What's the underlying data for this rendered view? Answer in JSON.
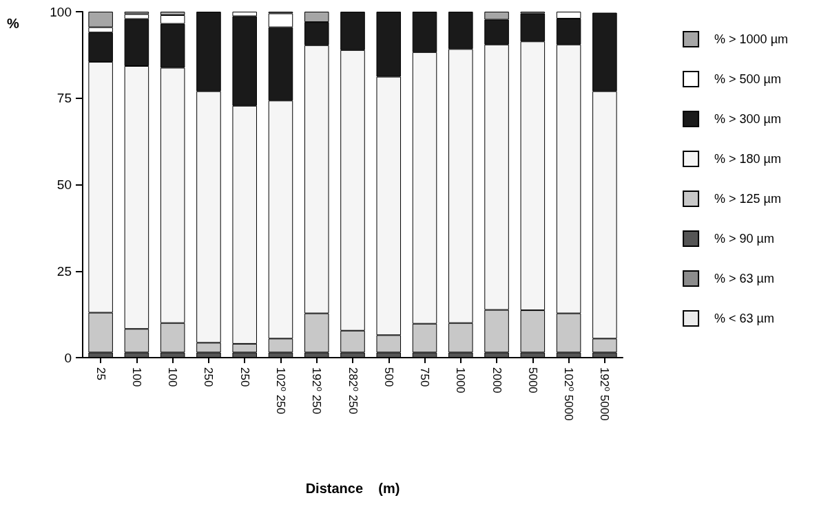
{
  "chart_data": {
    "type": "bar",
    "stacked": true,
    "xlabel": "Distance    (m)",
    "ylabel": "%",
    "categories": [
      "25",
      "100",
      "100",
      "250",
      "250",
      "102⁰ 250",
      "192⁰ 250",
      "282⁰ 250",
      "500",
      "750",
      "1000",
      "2000",
      "5000",
      "102⁰ 5000",
      "192⁰ 5000"
    ],
    "ylim": [
      0,
      100
    ],
    "yticks": [
      0,
      25,
      50,
      75,
      100
    ],
    "grid": false,
    "legend": "right",
    "series": [
      {
        "name": "% < 63 µm",
        "color": "#ececec",
        "values": [
          null,
          null,
          null,
          null,
          null,
          null,
          null,
          null,
          null,
          null,
          null,
          null,
          null,
          null,
          null
        ]
      },
      {
        "name": "% > 63 µm",
        "color": "#8c8c8c",
        "values": [
          null,
          null,
          null,
          null,
          null,
          null,
          null,
          null,
          null,
          null,
          null,
          null,
          null,
          null,
          null
        ]
      },
      {
        "name": "% > 90 µm",
        "color": "#555555",
        "values": [
          1.5,
          1.5,
          1.5,
          1.5,
          1.5,
          1.5,
          1.5,
          1.5,
          1.5,
          1.5,
          1.5,
          1.5,
          1.5,
          1.5,
          1.5
        ]
      },
      {
        "name": "% > 125 µm",
        "color": "#c8c8c8",
        "values": [
          11.5,
          6.8,
          8.5,
          2.8,
          2.5,
          4,
          11.3,
          6.3,
          5,
          8.3,
          8.5,
          12.3,
          12.2,
          11.3,
          4
        ]
      },
      {
        "name": "% > 180 µm",
        "color": "#f5f5f5",
        "values": [
          72.5,
          76,
          73.8,
          72.7,
          68.8,
          68.8,
          77.5,
          81.1,
          74.7,
          78.5,
          79.2,
          76.7,
          77.7,
          77.7,
          71.5
        ]
      },
      {
        "name": "% > 300 µm",
        "color": "#1a1a1a",
        "values": [
          8.5,
          13.6,
          12.7,
          23,
          25.9,
          21.2,
          6.7,
          11.1,
          18.8,
          11.7,
          10.8,
          7.2,
          8.1,
          7.5,
          22.7
        ]
      },
      {
        "name": "% > 500 µm",
        "color": "#ffffff",
        "values": [
          1.5,
          1.4,
          2.5,
          null,
          1.3,
          4,
          null,
          null,
          null,
          null,
          null,
          null,
          0.5,
          2,
          null
        ]
      },
      {
        "name": "% > 1000 µm",
        "color": "#a6a6a6",
        "values": [
          4.5,
          0.7,
          1,
          null,
          null,
          0.5,
          3,
          null,
          null,
          null,
          null,
          2.3,
          null,
          null,
          null
        ]
      }
    ]
  }
}
